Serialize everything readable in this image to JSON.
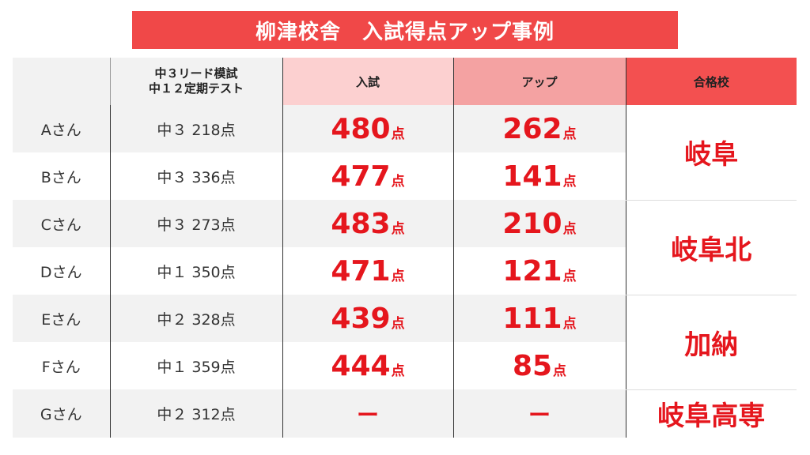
{
  "title": "柳津校舎　入試得点アップ事例",
  "headers": {
    "test_line1": "中３リード模試",
    "test_line2": "中１２定期テスト",
    "exam": "入試",
    "up": "アップ",
    "school": "合格校"
  },
  "unit": "点",
  "rows": [
    {
      "name": "Aさん",
      "test": "中３ 218点",
      "exam": "480",
      "up": "262"
    },
    {
      "name": "Bさん",
      "test": "中３ 336点",
      "exam": "477",
      "up": "141"
    },
    {
      "name": "Cさん",
      "test": "中３ 273点",
      "exam": "483",
      "up": "210"
    },
    {
      "name": "Dさん",
      "test": "中１ 350点",
      "exam": "471",
      "up": "121"
    },
    {
      "name": "Eさん",
      "test": "中２ 328点",
      "exam": "439",
      "up": "111"
    },
    {
      "name": "Fさん",
      "test": "中１ 359点",
      "exam": "444",
      "up": "85"
    },
    {
      "name": "Gさん",
      "test": "中２ 312点",
      "exam": "ー",
      "up": "ー"
    }
  ],
  "schools": [
    "岐阜",
    "岐阜北",
    "加納",
    "岐阜高専"
  ],
  "colors": {
    "accent": "#f04848",
    "score": "#e5161d",
    "exam_header": "#fcd0d0",
    "up_header": "#f4a2a2"
  }
}
